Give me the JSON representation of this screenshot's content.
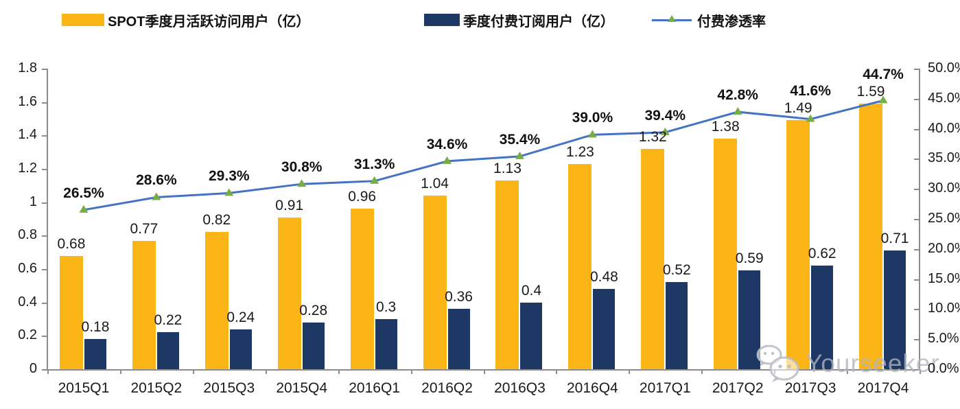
{
  "watermark": {
    "text": "Yourseeker",
    "icon": "wechat-icon"
  },
  "chart_data": {
    "type": "bar+line combo",
    "title": "",
    "categories": [
      "2015Q1",
      "2015Q2",
      "2015Q3",
      "2015Q4",
      "2016Q1",
      "2016Q2",
      "2016Q3",
      "2016Q4",
      "2017Q1",
      "2017Q2",
      "2017Q3",
      "2017Q4"
    ],
    "series": [
      {
        "name": "SPOT季度月活跃访问用户（亿）",
        "type": "bar",
        "axis": "left",
        "color": "#FBB517",
        "values": [
          0.68,
          0.77,
          0.82,
          0.91,
          0.96,
          1.04,
          1.13,
          1.23,
          1.32,
          1.38,
          1.49,
          1.59
        ],
        "labels": [
          "0.68",
          "0.77",
          "0.82",
          "0.91",
          "0.96",
          "1.04",
          "1.13",
          "1.23",
          "1.32",
          "1.38",
          "1.49",
          "1.59"
        ]
      },
      {
        "name": "季度付费订阅用户（亿）",
        "type": "bar",
        "axis": "left",
        "color": "#1E3866",
        "values": [
          0.18,
          0.22,
          0.24,
          0.28,
          0.3,
          0.36,
          0.4,
          0.48,
          0.52,
          0.59,
          0.62,
          0.71
        ],
        "labels": [
          "0.18",
          "0.22",
          "0.24",
          "0.28",
          "0.3",
          "0.36",
          "0.4",
          "0.48",
          "0.52",
          "0.59",
          "0.62",
          "0.71"
        ]
      },
      {
        "name": "付费渗透率",
        "type": "line",
        "axis": "right",
        "color": "#4472C4",
        "marker": "triangle",
        "marker_color": "#77AD45",
        "values": [
          26.5,
          28.6,
          29.3,
          30.8,
          31.3,
          34.6,
          35.4,
          39.0,
          39.4,
          42.8,
          41.6,
          44.7
        ],
        "labels": [
          "26.5%",
          "28.6%",
          "29.3%",
          "30.8%",
          "31.3%",
          "34.6%",
          "35.4%",
          "39.0%",
          "39.4%",
          "42.8%",
          "41.6%",
          "44.7%"
        ]
      }
    ],
    "left_axis": {
      "min": 0,
      "max": 1.8,
      "step": 0.2,
      "tick_labels": [
        "0",
        "0.2",
        "0.4",
        "0.6",
        "0.8",
        "1",
        "1.2",
        "1.4",
        "1.6",
        "1.8"
      ]
    },
    "right_axis": {
      "min": 0,
      "max": 50,
      "step": 5,
      "tick_labels": [
        "0.0%",
        "5.0%",
        "10.0%",
        "15.0%",
        "20.0%",
        "25.0%",
        "30.0%",
        "35.0%",
        "40.0%",
        "45.0%",
        "50.0%"
      ]
    },
    "grid": false,
    "legend_position": "top",
    "colors": {
      "axis_line": "#8C8C8C",
      "text": "#1A1A1A",
      "watermark": "#B0B5BC"
    }
  }
}
